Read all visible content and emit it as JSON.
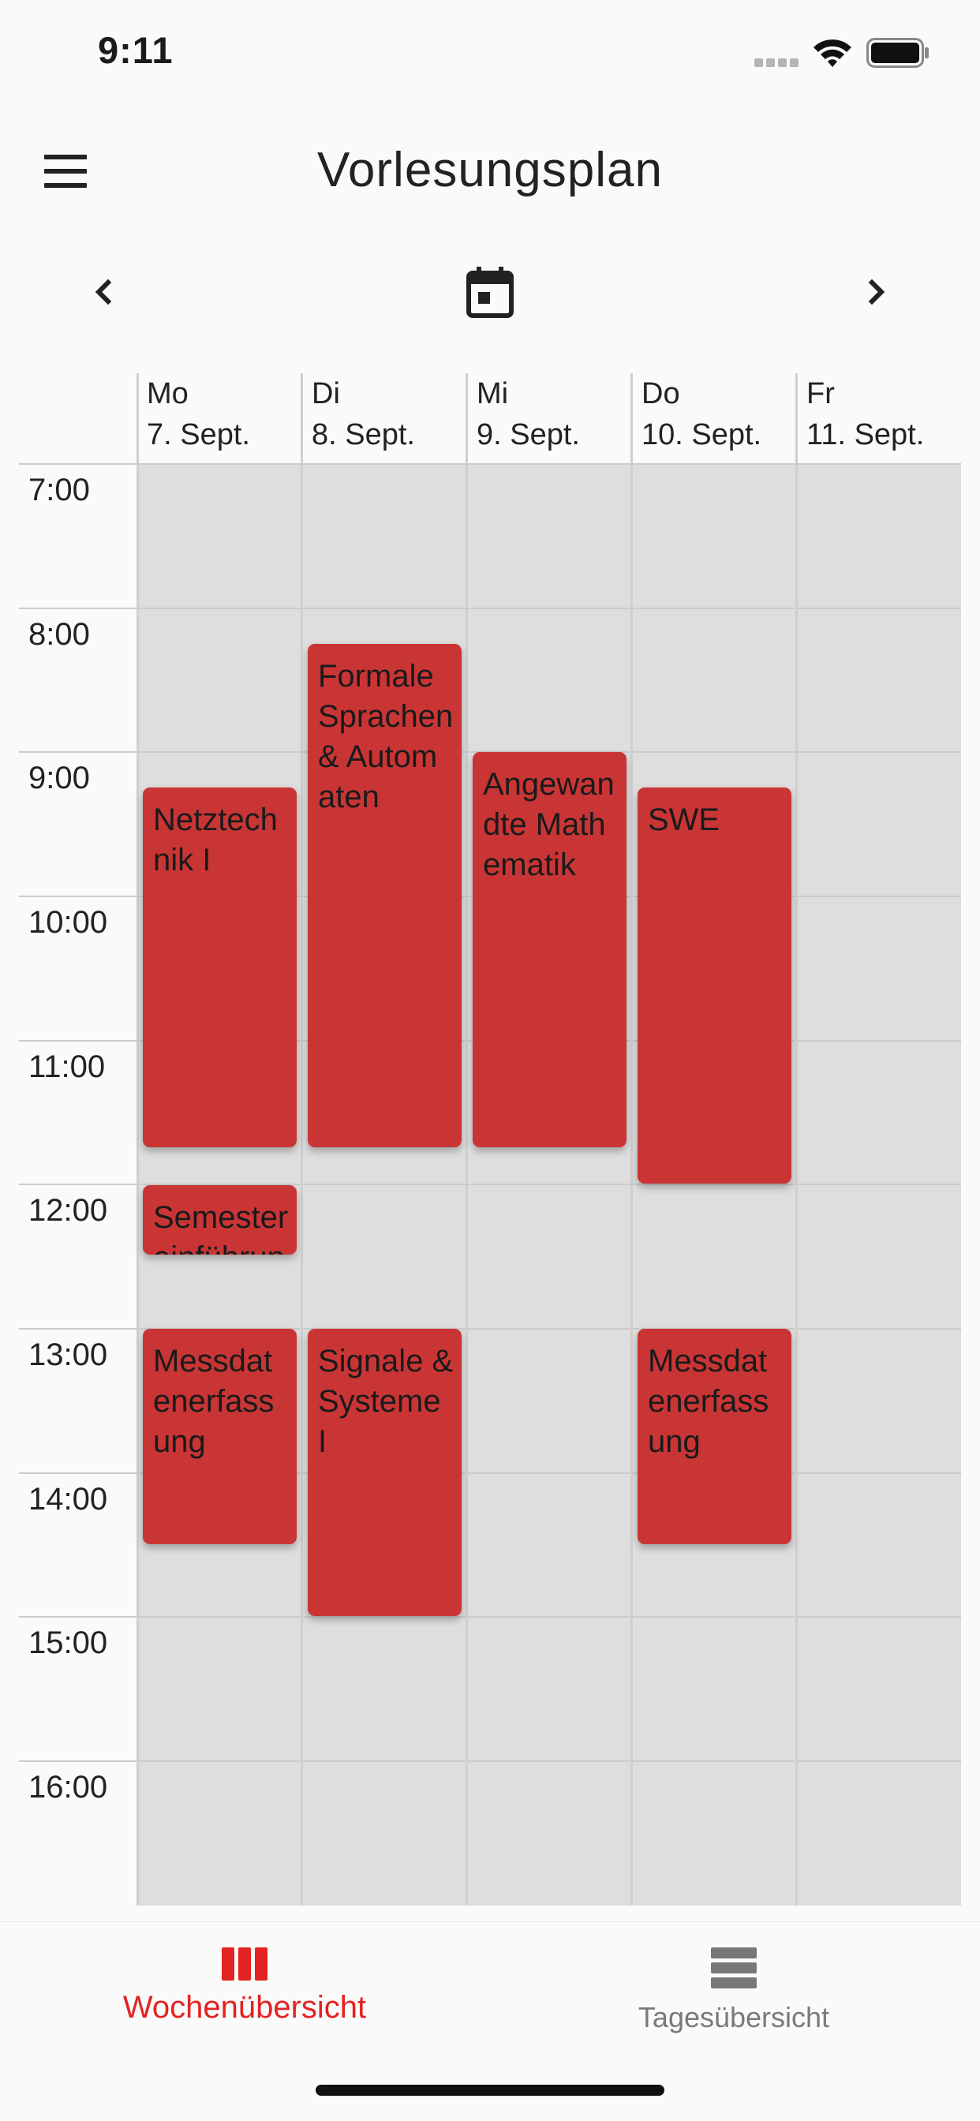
{
  "status_bar": {
    "time": "9:11",
    "icons": [
      "cellular-signal-icon",
      "wifi-icon",
      "battery-icon"
    ]
  },
  "app_bar": {
    "title": "Vorlesungsplan",
    "menu_icon": "menu-icon"
  },
  "week_nav": {
    "prev_icon": "chevron-left-icon",
    "today_icon": "calendar-today-icon",
    "next_icon": "chevron-right-icon"
  },
  "days": [
    {
      "weekday": "Mo",
      "date": "7. Sept."
    },
    {
      "weekday": "Di",
      "date": "8. Sept."
    },
    {
      "weekday": "Mi",
      "date": "9. Sept."
    },
    {
      "weekday": "Do",
      "date": "10. Sept."
    },
    {
      "weekday": "Fr",
      "date": "11. Sept."
    }
  ],
  "hours": [
    "7:00",
    "8:00",
    "9:00",
    "10:00",
    "11:00",
    "12:00",
    "13:00",
    "14:00",
    "15:00",
    "16:00"
  ],
  "events": [
    {
      "day": "Mo",
      "start": "9:15",
      "end": "11:45",
      "title": "Netztechnik I"
    },
    {
      "day": "Mo",
      "start": "12:00",
      "end": "12:30",
      "title": "Semestereinführung"
    },
    {
      "day": "Mo",
      "start": "13:00",
      "end": "14:30",
      "title": "Messdatenerfassung"
    },
    {
      "day": "Di",
      "start": "8:15",
      "end": "11:45",
      "title": "Formale Sprachen & Automaten"
    },
    {
      "day": "Di",
      "start": "13:00",
      "end": "15:00",
      "title": "Signale & Systeme I"
    },
    {
      "day": "Mi",
      "start": "9:00",
      "end": "11:45",
      "title": "Angewandte Mathematik"
    },
    {
      "day": "Do",
      "start": "9:15",
      "end": "12:00",
      "title": "SWE"
    },
    {
      "day": "Do",
      "start": "13:00",
      "end": "14:30",
      "title": "Messdatenerfassung"
    }
  ],
  "colors": {
    "event": "#c93535",
    "accent": "#e32222",
    "grid_background": "#dedede",
    "inactive": "#7a7a7a"
  },
  "bottom_nav": {
    "tabs": [
      {
        "label": "Wochenübersicht",
        "icon": "week-view-icon",
        "active": true
      },
      {
        "label": "Tagesübersicht",
        "icon": "day-view-icon",
        "active": false
      }
    ]
  }
}
